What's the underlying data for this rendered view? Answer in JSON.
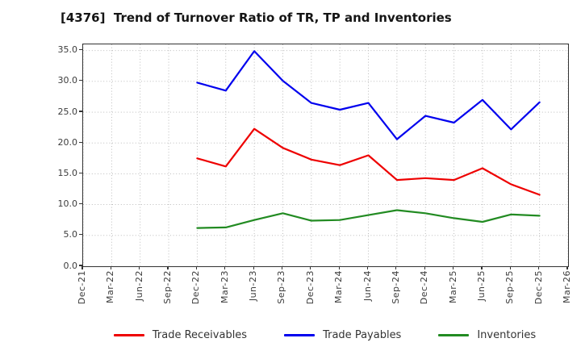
{
  "title": "[4376]  Trend of Turnover Ratio of TR, TP and Inventories",
  "chart_data": {
    "type": "line",
    "title": "[4376]  Trend of Turnover Ratio of TR, TP and Inventories",
    "categories": [
      "Dec-21",
      "Mar-22",
      "Jun-22",
      "Sep-22",
      "Dec-22",
      "Mar-23",
      "Jun-23",
      "Sep-23",
      "Dec-23",
      "Mar-24",
      "Jun-24",
      "Sep-24",
      "Dec-24",
      "Mar-25",
      "Jun-25",
      "Sep-25",
      "Dec-25",
      "Mar-26"
    ],
    "series": [
      {
        "name": "Trade Receivables",
        "color": "#ee0000",
        "values": [
          null,
          null,
          null,
          null,
          17.5,
          16.2,
          22.3,
          19.2,
          17.3,
          16.4,
          18.0,
          14.0,
          14.3,
          14.0,
          15.9,
          13.3,
          11.6,
          null
        ]
      },
      {
        "name": "Trade Payables",
        "color": "#0000ee",
        "values": [
          null,
          null,
          null,
          null,
          29.8,
          28.5,
          34.9,
          30.1,
          26.5,
          25.4,
          26.5,
          20.6,
          24.4,
          23.3,
          27.0,
          22.2,
          26.6,
          null
        ]
      },
      {
        "name": "Inventories",
        "color": "#228b22",
        "values": [
          null,
          null,
          null,
          null,
          6.2,
          6.3,
          7.5,
          8.6,
          7.4,
          7.5,
          8.3,
          9.1,
          8.6,
          7.8,
          7.2,
          8.4,
          8.2,
          null
        ]
      }
    ],
    "xlabel": "",
    "ylabel": "",
    "ylim": [
      0,
      36
    ],
    "y_ticks": [
      0,
      5,
      10,
      15,
      20,
      25,
      30,
      35
    ],
    "y_tick_labels": [
      "0.0",
      "5.0",
      "10.0",
      "15.0",
      "20.0",
      "25.0",
      "30.0",
      "35.0"
    ],
    "grid": "dotted",
    "grid_color": "#b3b3b3",
    "legend_position": "bottom"
  }
}
